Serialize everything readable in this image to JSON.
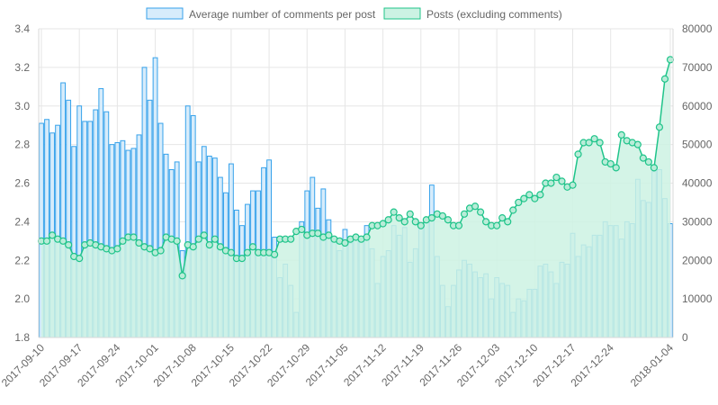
{
  "chart_data": {
    "type": "bar",
    "title": "",
    "legend_position": "top",
    "grid": true,
    "x": [
      "2017-09-10",
      "2017-09-11",
      "2017-09-12",
      "2017-09-13",
      "2017-09-14",
      "2017-09-15",
      "2017-09-16",
      "2017-09-17",
      "2017-09-18",
      "2017-09-19",
      "2017-09-20",
      "2017-09-21",
      "2017-09-22",
      "2017-09-23",
      "2017-09-24",
      "2017-09-25",
      "2017-09-26",
      "2017-09-27",
      "2017-09-28",
      "2017-09-29",
      "2017-09-30",
      "2017-10-01",
      "2017-10-02",
      "2017-10-03",
      "2017-10-04",
      "2017-10-05",
      "2017-10-06",
      "2017-10-07",
      "2017-10-08",
      "2017-10-09",
      "2017-10-10",
      "2017-10-11",
      "2017-10-12",
      "2017-10-13",
      "2017-10-14",
      "2017-10-15",
      "2017-10-16",
      "2017-10-17",
      "2017-10-18",
      "2017-10-19",
      "2017-10-20",
      "2017-10-21",
      "2017-10-22",
      "2017-10-23",
      "2017-10-24",
      "2017-10-25",
      "2017-10-26",
      "2017-10-27",
      "2017-10-28",
      "2017-10-29",
      "2017-10-30",
      "2017-10-31",
      "2017-11-01",
      "2017-11-02",
      "2017-11-03",
      "2017-11-04",
      "2017-11-05",
      "2017-11-06",
      "2017-11-07",
      "2017-11-08",
      "2017-11-09",
      "2017-11-10",
      "2017-11-11",
      "2017-11-12",
      "2017-11-13",
      "2017-11-14",
      "2017-11-15",
      "2017-11-16",
      "2017-11-17",
      "2017-11-18",
      "2017-11-19",
      "2017-11-20",
      "2017-11-21",
      "2017-11-22",
      "2017-11-23",
      "2017-11-24",
      "2017-11-25",
      "2017-11-26",
      "2017-11-27",
      "2017-11-28",
      "2017-11-29",
      "2017-11-30",
      "2017-12-01",
      "2017-12-02",
      "2017-12-03",
      "2017-12-04",
      "2017-12-05",
      "2017-12-06",
      "2017-12-07",
      "2017-12-08",
      "2017-12-09",
      "2017-12-10",
      "2017-12-11",
      "2017-12-12",
      "2017-12-13",
      "2017-12-14",
      "2017-12-15",
      "2017-12-16",
      "2017-12-17",
      "2017-12-18",
      "2017-12-19",
      "2017-12-20",
      "2017-12-21",
      "2017-12-22",
      "2017-12-23",
      "2017-12-24",
      "2017-12-25",
      "2017-12-26",
      "2017-12-27",
      "2017-12-28",
      "2017-12-29",
      "2017-12-30",
      "2017-12-31",
      "2018-01-01",
      "2018-01-02",
      "2018-01-03",
      "2018-01-04"
    ],
    "x_tick_labels": [
      "2017-09-10",
      "2017-09-17",
      "2017-09-24",
      "2017-10-01",
      "2017-10-08",
      "2017-10-15",
      "2017-10-22",
      "2017-10-29",
      "2017-11-05",
      "2017-11-12",
      "2017-11-19",
      "2017-11-26",
      "2017-12-03",
      "2017-12-10",
      "2017-12-17",
      "2017-12-24",
      "2018-01-04"
    ],
    "y_left": {
      "ylim": [
        1.8,
        3.4
      ],
      "ticks": [
        "1.8",
        "2.0",
        "2.2",
        "2.4",
        "2.6",
        "2.8",
        "3.0",
        "3.2",
        "3.4"
      ]
    },
    "y_right": {
      "ylim": [
        0,
        80000
      ],
      "ticks": [
        "0",
        "10000",
        "20000",
        "30000",
        "40000",
        "50000",
        "60000",
        "70000",
        "80000"
      ]
    },
    "series": [
      {
        "name": "Average number of comments per post",
        "type": "bar",
        "axis": "left",
        "color": "#36a2eb",
        "fill": "#d7ecfb",
        "values": [
          2.91,
          2.93,
          2.86,
          2.9,
          3.12,
          3.03,
          2.79,
          3.0,
          2.92,
          2.92,
          2.98,
          3.09,
          2.97,
          2.8,
          2.81,
          2.82,
          2.77,
          2.78,
          2.85,
          3.2,
          3.03,
          3.25,
          2.91,
          2.75,
          2.67,
          2.71,
          2.25,
          3.0,
          2.95,
          2.71,
          2.79,
          2.74,
          2.73,
          2.63,
          2.55,
          2.7,
          2.46,
          2.38,
          2.49,
          2.56,
          2.56,
          2.68,
          2.72,
          2.32,
          2.11,
          2.18,
          2.07,
          1.93,
          2.4,
          2.56,
          2.63,
          2.47,
          2.57,
          2.41,
          2.31,
          2.25,
          2.36,
          2.29,
          2.32,
          2.32,
          2.38,
          2.26,
          2.08,
          2.22,
          2.25,
          2.38,
          2.33,
          2.37,
          2.19,
          2.26,
          2.37,
          2.42,
          2.59,
          2.22,
          2.07,
          1.96,
          2.07,
          2.15,
          2.2,
          2.18,
          2.14,
          2.11,
          2.13,
          2.0,
          2.11,
          2.08,
          2.07,
          1.93,
          2.0,
          1.99,
          2.05,
          2.05,
          2.17,
          2.18,
          2.14,
          2.08,
          2.19,
          2.18,
          2.34,
          2.22,
          2.28,
          2.27,
          2.33,
          2.33,
          2.4,
          2.38,
          2.38,
          2.31,
          2.4,
          2.39,
          2.62,
          2.51,
          2.5,
          2.66,
          2.67,
          2.52,
          2.39
        ]
      },
      {
        "name": "Posts (excluding comments)",
        "type": "area",
        "axis": "right",
        "color": "#1fc48a",
        "fill": "#ccf2e3",
        "values": [
          25000,
          25000,
          26500,
          25500,
          25000,
          24000,
          21000,
          20500,
          24000,
          24500,
          24000,
          23500,
          23000,
          22500,
          23000,
          25000,
          26000,
          26000,
          24500,
          23500,
          23000,
          22000,
          22500,
          26000,
          25500,
          25000,
          16000,
          24000,
          23500,
          25500,
          26500,
          24000,
          25500,
          23500,
          22500,
          22000,
          20500,
          20500,
          22000,
          23500,
          22000,
          22000,
          22000,
          21500,
          25500,
          25500,
          25500,
          27500,
          28000,
          26500,
          27000,
          27000,
          26000,
          26500,
          25500,
          25000,
          24500,
          25500,
          26000,
          25500,
          26000,
          29000,
          29000,
          29500,
          30500,
          32500,
          31000,
          30000,
          32000,
          30000,
          29000,
          30500,
          31000,
          32000,
          31500,
          30500,
          29000,
          29000,
          32000,
          33500,
          34000,
          32500,
          30000,
          29000,
          29000,
          31000,
          30000,
          33000,
          35000,
          36000,
          37000,
          36000,
          37000,
          40000,
          40000,
          41500,
          40500,
          39000,
          39500,
          47500,
          50500,
          50500,
          51500,
          50500,
          45500,
          45000,
          44000,
          52500,
          51000,
          50500,
          50000,
          46500,
          45500,
          44000,
          54500,
          67000,
          72000
        ]
      }
    ]
  }
}
